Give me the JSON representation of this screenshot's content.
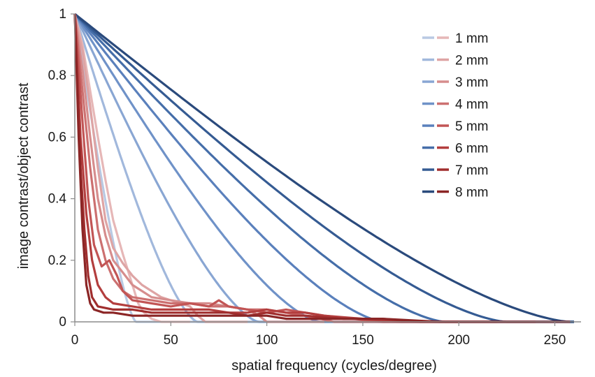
{
  "chart_data": {
    "type": "line",
    "title": "",
    "xlabel": "spatial frequency (cycles/degree)",
    "ylabel": "image contrast/object contrast",
    "xlim": [
      0,
      260
    ],
    "ylim": [
      0,
      1
    ],
    "x_ticks": [
      0,
      50,
      100,
      150,
      200,
      250
    ],
    "y_ticks": [
      0,
      0.2,
      0.4,
      0.6,
      0.8,
      1
    ],
    "x_tick_labels": [
      "0",
      "50",
      "100",
      "150",
      "200",
      "250"
    ],
    "y_tick_labels": [
      "0",
      "0.2",
      "0.4",
      "0.6",
      "0.8",
      "1"
    ],
    "grid": false,
    "legend_position": "top-right",
    "diffraction_series": [
      {
        "name": "1 mm",
        "color": "#b9c9e3",
        "cutoff": 32
      },
      {
        "name": "2 mm",
        "color": "#a1b8dc",
        "cutoff": 64
      },
      {
        "name": "3 mm",
        "color": "#89a6d3",
        "cutoff": 96
      },
      {
        "name": "4 mm",
        "color": "#6f92c8",
        "cutoff": 128
      },
      {
        "name": "5 mm",
        "color": "#5a80bc",
        "cutoff": 161
      },
      {
        "name": "6 mm",
        "color": "#456ea9",
        "cutoff": 193
      },
      {
        "name": "7 mm",
        "color": "#355b93",
        "cutoff": 225
      },
      {
        "name": "8 mm",
        "color": "#2a4a7c",
        "cutoff": 258
      }
    ],
    "aberrated_series": [
      {
        "name": "1 mm",
        "color": "#e6b7b7",
        "points": [
          [
            0,
            1
          ],
          [
            4,
            0.9
          ],
          [
            8,
            0.75
          ],
          [
            12,
            0.6
          ],
          [
            16,
            0.46
          ],
          [
            20,
            0.33
          ],
          [
            25,
            0.22
          ],
          [
            30,
            0.12
          ],
          [
            33,
            0.06
          ],
          [
            36,
            0.03
          ],
          [
            40,
            0.01
          ],
          [
            45,
            0
          ],
          [
            60,
            0
          ]
        ]
      },
      {
        "name": "2 mm",
        "color": "#dea4a4",
        "points": [
          [
            0,
            1
          ],
          [
            4,
            0.88
          ],
          [
            8,
            0.7
          ],
          [
            12,
            0.5
          ],
          [
            16,
            0.33
          ],
          [
            20,
            0.24
          ],
          [
            25,
            0.19
          ],
          [
            30,
            0.15
          ],
          [
            35,
            0.12
          ],
          [
            40,
            0.1
          ],
          [
            45,
            0.08
          ],
          [
            50,
            0.07
          ],
          [
            55,
            0.06
          ],
          [
            60,
            0.05
          ],
          [
            64,
            0.02
          ],
          [
            68,
            0
          ],
          [
            90,
            0
          ]
        ]
      },
      {
        "name": "3 mm",
        "color": "#d68d8d",
        "points": [
          [
            0,
            1
          ],
          [
            4,
            0.82
          ],
          [
            8,
            0.6
          ],
          [
            12,
            0.4
          ],
          [
            16,
            0.28
          ],
          [
            20,
            0.2
          ],
          [
            25,
            0.16
          ],
          [
            30,
            0.12
          ],
          [
            35,
            0.1
          ],
          [
            40,
            0.08
          ],
          [
            50,
            0.07
          ],
          [
            60,
            0.06
          ],
          [
            70,
            0.06
          ],
          [
            80,
            0.05
          ],
          [
            90,
            0.04
          ],
          [
            96,
            0.02
          ],
          [
            100,
            0
          ],
          [
            130,
            0
          ]
        ]
      },
      {
        "name": "4 mm",
        "color": "#cc7070",
        "points": [
          [
            0,
            1
          ],
          [
            4,
            0.75
          ],
          [
            8,
            0.5
          ],
          [
            12,
            0.3
          ],
          [
            16,
            0.2
          ],
          [
            20,
            0.14
          ],
          [
            25,
            0.1
          ],
          [
            30,
            0.08
          ],
          [
            40,
            0.07
          ],
          [
            50,
            0.06
          ],
          [
            60,
            0.06
          ],
          [
            70,
            0.05
          ],
          [
            80,
            0.05
          ],
          [
            90,
            0.04
          ],
          [
            100,
            0.04
          ],
          [
            110,
            0.03
          ],
          [
            120,
            0.02
          ],
          [
            128,
            0.01
          ],
          [
            135,
            0
          ],
          [
            170,
            0
          ]
        ]
      },
      {
        "name": "5 mm",
        "color": "#c25555",
        "points": [
          [
            0,
            1
          ],
          [
            4,
            0.65
          ],
          [
            7,
            0.4
          ],
          [
            10,
            0.25
          ],
          [
            14,
            0.18
          ],
          [
            18,
            0.2
          ],
          [
            22,
            0.15
          ],
          [
            25,
            0.1
          ],
          [
            30,
            0.07
          ],
          [
            40,
            0.06
          ],
          [
            50,
            0.05
          ],
          [
            60,
            0.06
          ],
          [
            70,
            0.05
          ],
          [
            75,
            0.07
          ],
          [
            80,
            0.05
          ],
          [
            90,
            0.04
          ],
          [
            100,
            0.03
          ],
          [
            110,
            0.04
          ],
          [
            120,
            0.03
          ],
          [
            130,
            0.02
          ],
          [
            145,
            0.01
          ],
          [
            160,
            0
          ],
          [
            200,
            0
          ]
        ]
      },
      {
        "name": "6 mm",
        "color": "#b33e3e",
        "points": [
          [
            0,
            1
          ],
          [
            3,
            0.6
          ],
          [
            6,
            0.35
          ],
          [
            9,
            0.2
          ],
          [
            12,
            0.12
          ],
          [
            16,
            0.08
          ],
          [
            20,
            0.06
          ],
          [
            30,
            0.05
          ],
          [
            40,
            0.04
          ],
          [
            50,
            0.04
          ],
          [
            60,
            0.04
          ],
          [
            70,
            0.04
          ],
          [
            80,
            0.03
          ],
          [
            90,
            0.03
          ],
          [
            100,
            0.04
          ],
          [
            110,
            0.03
          ],
          [
            120,
            0.03
          ],
          [
            130,
            0.02
          ],
          [
            150,
            0.01
          ],
          [
            170,
            0
          ],
          [
            220,
            0
          ]
        ]
      },
      {
        "name": "7 mm",
        "color": "#a02e2e",
        "points": [
          [
            0,
            1
          ],
          [
            3,
            0.5
          ],
          [
            5,
            0.3
          ],
          [
            7,
            0.15
          ],
          [
            9,
            0.08
          ],
          [
            12,
            0.05
          ],
          [
            20,
            0.04
          ],
          [
            30,
            0.04
          ],
          [
            40,
            0.03
          ],
          [
            50,
            0.03
          ],
          [
            60,
            0.03
          ],
          [
            70,
            0.03
          ],
          [
            80,
            0.03
          ],
          [
            90,
            0.02
          ],
          [
            100,
            0.03
          ],
          [
            110,
            0.02
          ],
          [
            120,
            0.02
          ],
          [
            140,
            0.01
          ],
          [
            160,
            0.01
          ],
          [
            180,
            0
          ],
          [
            240,
            0
          ]
        ]
      },
      {
        "name": "8 mm",
        "color": "#8b2525",
        "points": [
          [
            0,
            1
          ],
          [
            2,
            0.6
          ],
          [
            4,
            0.3
          ],
          [
            6,
            0.12
          ],
          [
            8,
            0.06
          ],
          [
            10,
            0.04
          ],
          [
            15,
            0.03
          ],
          [
            20,
            0.03
          ],
          [
            30,
            0.02
          ],
          [
            40,
            0.02
          ],
          [
            50,
            0.02
          ],
          [
            60,
            0.02
          ],
          [
            70,
            0.02
          ],
          [
            80,
            0.02
          ],
          [
            90,
            0.02
          ],
          [
            100,
            0.02
          ],
          [
            110,
            0.01
          ],
          [
            130,
            0.01
          ],
          [
            160,
            0.01
          ],
          [
            190,
            0
          ],
          [
            258,
            0
          ]
        ]
      }
    ]
  }
}
